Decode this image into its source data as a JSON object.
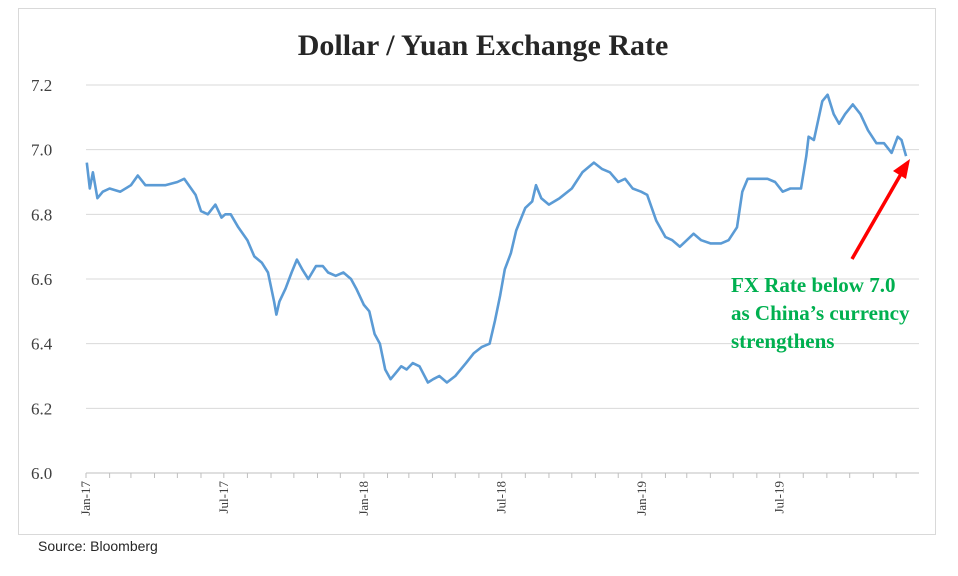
{
  "source_note": "Source: Bloomberg",
  "chart_data": {
    "type": "line",
    "title": "Dollar / Yuan Exchange Rate",
    "xlabel": "",
    "ylabel": "",
    "ylim": [
      6.0,
      7.2
    ],
    "yticks": [
      "6.0",
      "6.2",
      "6.4",
      "6.6",
      "6.8",
      "7.0",
      "7.2"
    ],
    "xticks": [
      "Jan-17",
      "Jul-17",
      "Jan-18",
      "Jul-18",
      "Jan-19",
      "Jul-19"
    ],
    "xrange": [
      "2017-01-01",
      "2019-12-31"
    ],
    "grid": "horizontal",
    "series": [
      {
        "color": "#5b9bd5",
        "points": [
          [
            "2017-01-02",
            6.96
          ],
          [
            "2017-01-06",
            6.88
          ],
          [
            "2017-01-10",
            6.93
          ],
          [
            "2017-01-16",
            6.85
          ],
          [
            "2017-01-23",
            6.87
          ],
          [
            "2017-02-01",
            6.88
          ],
          [
            "2017-02-15",
            6.87
          ],
          [
            "2017-03-01",
            6.89
          ],
          [
            "2017-03-10",
            6.92
          ],
          [
            "2017-03-20",
            6.89
          ],
          [
            "2017-04-01",
            6.89
          ],
          [
            "2017-04-15",
            6.89
          ],
          [
            "2017-05-01",
            6.9
          ],
          [
            "2017-05-10",
            6.91
          ],
          [
            "2017-05-25",
            6.86
          ],
          [
            "2017-06-01",
            6.81
          ],
          [
            "2017-06-10",
            6.8
          ],
          [
            "2017-06-20",
            6.83
          ],
          [
            "2017-06-28",
            6.79
          ],
          [
            "2017-07-03",
            6.8
          ],
          [
            "2017-07-10",
            6.8
          ],
          [
            "2017-07-20",
            6.76
          ],
          [
            "2017-08-01",
            6.72
          ],
          [
            "2017-08-10",
            6.67
          ],
          [
            "2017-08-20",
            6.65
          ],
          [
            "2017-08-28",
            6.62
          ],
          [
            "2017-09-05",
            6.53
          ],
          [
            "2017-09-08",
            6.49
          ],
          [
            "2017-09-12",
            6.53
          ],
          [
            "2017-09-20",
            6.57
          ],
          [
            "2017-09-28",
            6.62
          ],
          [
            "2017-10-05",
            6.66
          ],
          [
            "2017-10-12",
            6.63
          ],
          [
            "2017-10-20",
            6.6
          ],
          [
            "2017-10-30",
            6.64
          ],
          [
            "2017-11-08",
            6.64
          ],
          [
            "2017-11-15",
            6.62
          ],
          [
            "2017-11-25",
            6.61
          ],
          [
            "2017-12-05",
            6.62
          ],
          [
            "2017-12-15",
            6.6
          ],
          [
            "2017-12-22",
            6.57
          ],
          [
            "2018-01-01",
            6.52
          ],
          [
            "2018-01-08",
            6.5
          ],
          [
            "2018-01-15",
            6.43
          ],
          [
            "2018-01-22",
            6.4
          ],
          [
            "2018-01-29",
            6.32
          ],
          [
            "2018-02-05",
            6.29
          ],
          [
            "2018-02-12",
            6.31
          ],
          [
            "2018-02-19",
            6.33
          ],
          [
            "2018-02-26",
            6.32
          ],
          [
            "2018-03-06",
            6.34
          ],
          [
            "2018-03-15",
            6.33
          ],
          [
            "2018-03-26",
            6.28
          ],
          [
            "2018-04-02",
            6.29
          ],
          [
            "2018-04-10",
            6.3
          ],
          [
            "2018-04-20",
            6.28
          ],
          [
            "2018-05-01",
            6.3
          ],
          [
            "2018-05-15",
            6.34
          ],
          [
            "2018-05-25",
            6.37
          ],
          [
            "2018-06-05",
            6.39
          ],
          [
            "2018-06-15",
            6.4
          ],
          [
            "2018-06-22",
            6.47
          ],
          [
            "2018-06-29",
            6.55
          ],
          [
            "2018-07-05",
            6.63
          ],
          [
            "2018-07-13",
            6.68
          ],
          [
            "2018-07-20",
            6.75
          ],
          [
            "2018-08-01",
            6.82
          ],
          [
            "2018-08-10",
            6.84
          ],
          [
            "2018-08-15",
            6.89
          ],
          [
            "2018-08-22",
            6.85
          ],
          [
            "2018-09-01",
            6.83
          ],
          [
            "2018-09-15",
            6.85
          ],
          [
            "2018-10-01",
            6.88
          ],
          [
            "2018-10-15",
            6.93
          ],
          [
            "2018-10-30",
            6.96
          ],
          [
            "2018-11-10",
            6.94
          ],
          [
            "2018-11-20",
            6.93
          ],
          [
            "2018-12-01",
            6.9
          ],
          [
            "2018-12-10",
            6.91
          ],
          [
            "2018-12-20",
            6.88
          ],
          [
            "2018-12-31",
            6.87
          ],
          [
            "2019-01-08",
            6.86
          ],
          [
            "2019-01-20",
            6.78
          ],
          [
            "2019-02-01",
            6.73
          ],
          [
            "2019-02-10",
            6.72
          ],
          [
            "2019-02-20",
            6.7
          ],
          [
            "2019-03-01",
            6.72
          ],
          [
            "2019-03-10",
            6.74
          ],
          [
            "2019-03-20",
            6.72
          ],
          [
            "2019-04-01",
            6.71
          ],
          [
            "2019-04-15",
            6.71
          ],
          [
            "2019-04-25",
            6.72
          ],
          [
            "2019-05-06",
            6.76
          ],
          [
            "2019-05-13",
            6.87
          ],
          [
            "2019-05-20",
            6.91
          ],
          [
            "2019-06-01",
            6.91
          ],
          [
            "2019-06-15",
            6.91
          ],
          [
            "2019-06-25",
            6.9
          ],
          [
            "2019-07-05",
            6.87
          ],
          [
            "2019-07-15",
            6.88
          ],
          [
            "2019-07-29",
            6.88
          ],
          [
            "2019-08-05",
            6.98
          ],
          [
            "2019-08-08",
            7.04
          ],
          [
            "2019-08-15",
            7.03
          ],
          [
            "2019-08-26",
            7.15
          ],
          [
            "2019-09-02",
            7.17
          ],
          [
            "2019-09-10",
            7.11
          ],
          [
            "2019-09-17",
            7.08
          ],
          [
            "2019-09-25",
            7.11
          ],
          [
            "2019-10-05",
            7.14
          ],
          [
            "2019-10-15",
            7.11
          ],
          [
            "2019-10-25",
            7.06
          ],
          [
            "2019-11-05",
            7.02
          ],
          [
            "2019-11-15",
            7.02
          ],
          [
            "2019-11-25",
            6.99
          ],
          [
            "2019-12-03",
            7.04
          ],
          [
            "2019-12-08",
            7.03
          ],
          [
            "2019-12-14",
            6.98
          ]
        ]
      }
    ],
    "annotation": {
      "lines": [
        "FX Rate below 7.0",
        "as China’s currency",
        "strengthens"
      ],
      "color": "#00b050",
      "arrow_color": "#ff0000"
    }
  }
}
